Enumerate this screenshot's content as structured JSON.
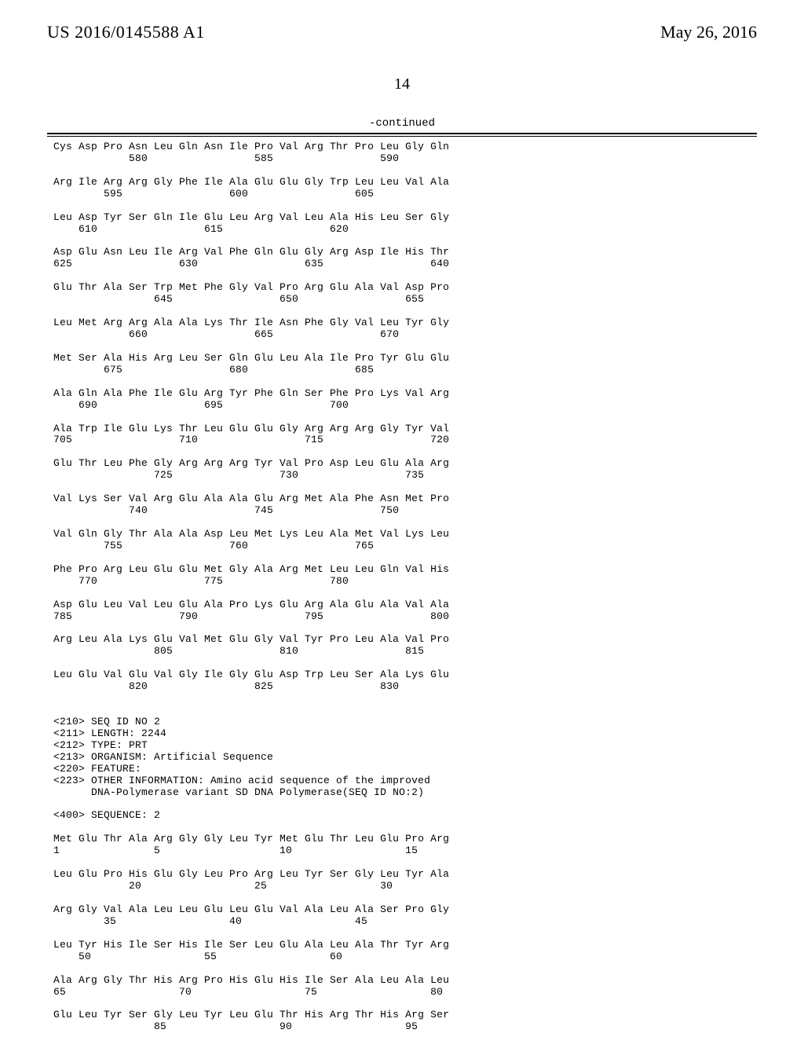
{
  "header": {
    "pub_number": "US 2016/0145588 A1",
    "pub_date": "May 26, 2016"
  },
  "page_number": "14",
  "continued_label": "-continued",
  "sequence_text": "Cys Asp Pro Asn Leu Gln Asn Ile Pro Val Arg Thr Pro Leu Gly Gln\n            580                 585                 590\n\nArg Ile Arg Arg Gly Phe Ile Ala Glu Glu Gly Trp Leu Leu Val Ala\n        595                 600                 605\n\nLeu Asp Tyr Ser Gln Ile Glu Leu Arg Val Leu Ala His Leu Ser Gly\n    610                 615                 620\n\nAsp Glu Asn Leu Ile Arg Val Phe Gln Glu Gly Arg Asp Ile His Thr\n625                 630                 635                 640\n\nGlu Thr Ala Ser Trp Met Phe Gly Val Pro Arg Glu Ala Val Asp Pro\n                645                 650                 655\n\nLeu Met Arg Arg Ala Ala Lys Thr Ile Asn Phe Gly Val Leu Tyr Gly\n            660                 665                 670\n\nMet Ser Ala His Arg Leu Ser Gln Glu Leu Ala Ile Pro Tyr Glu Glu\n        675                 680                 685\n\nAla Gln Ala Phe Ile Glu Arg Tyr Phe Gln Ser Phe Pro Lys Val Arg\n    690                 695                 700\n\nAla Trp Ile Glu Lys Thr Leu Glu Glu Gly Arg Arg Arg Gly Tyr Val\n705                 710                 715                 720\n\nGlu Thr Leu Phe Gly Arg Arg Arg Tyr Val Pro Asp Leu Glu Ala Arg\n                725                 730                 735\n\nVal Lys Ser Val Arg Glu Ala Ala Glu Arg Met Ala Phe Asn Met Pro\n            740                 745                 750\n\nVal Gln Gly Thr Ala Ala Asp Leu Met Lys Leu Ala Met Val Lys Leu\n        755                 760                 765\n\nPhe Pro Arg Leu Glu Glu Met Gly Ala Arg Met Leu Leu Gln Val His\n    770                 775                 780\n\nAsp Glu Leu Val Leu Glu Ala Pro Lys Glu Arg Ala Glu Ala Val Ala\n785                 790                 795                 800\n\nArg Leu Ala Lys Glu Val Met Glu Gly Val Tyr Pro Leu Ala Val Pro\n                805                 810                 815\n\nLeu Glu Val Glu Val Gly Ile Gly Glu Asp Trp Leu Ser Ala Lys Glu\n            820                 825                 830\n\n\n<210> SEQ ID NO 2\n<211> LENGTH: 2244\n<212> TYPE: PRT\n<213> ORGANISM: Artificial Sequence\n<220> FEATURE:\n<223> OTHER INFORMATION: Amino acid sequence of the improved\n      DNA-Polymerase variant SD DNA Polymerase(SEQ ID NO:2)\n\n<400> SEQUENCE: 2\n\nMet Glu Thr Ala Arg Gly Gly Leu Tyr Met Glu Thr Leu Glu Pro Arg\n1               5                   10                  15\n\nLeu Glu Pro His Glu Gly Leu Pro Arg Leu Tyr Ser Gly Leu Tyr Ala\n            20                  25                  30\n\nArg Gly Val Ala Leu Leu Glu Leu Glu Val Ala Leu Ala Ser Pro Gly\n        35                  40                  45\n\nLeu Tyr His Ile Ser His Ile Ser Leu Glu Ala Leu Ala Thr Tyr Arg\n    50                  55                  60\n\nAla Arg Gly Thr His Arg Pro His Glu His Ile Ser Ala Leu Ala Leu\n65                  70                  75                  80\n\nGlu Leu Tyr Ser Gly Leu Tyr Leu Glu Thr His Arg Thr His Arg Ser\n                85                  90                  95"
}
